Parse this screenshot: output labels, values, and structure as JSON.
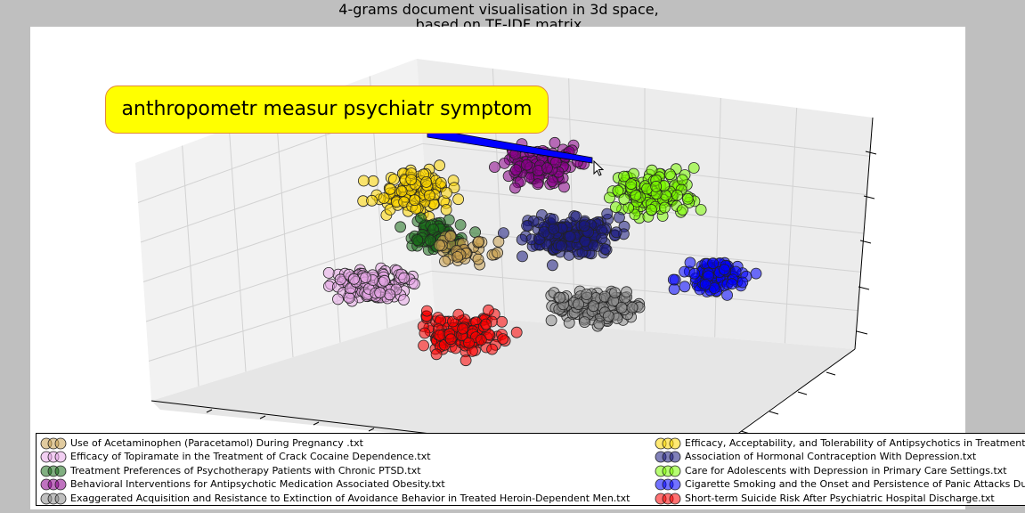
{
  "chart_data": {
    "type": "scatter",
    "projection": "3d",
    "title": "4-grams document visualisation in 3d space,\nbased on TF-IDF matrix",
    "title_lines": [
      "4-grams document visualisation in 3d space,",
      "based on TF-IDF matrix"
    ],
    "xlabel": "",
    "ylabel": "",
    "zlabel": "",
    "grid": true,
    "legend_position": "bottom",
    "annotation": "anthropometr measur psychiatr symptom",
    "series": [
      {
        "name": "Use of Acetaminophen (Paracetamol) During Pregnancy .txt",
        "color": "#c8a050"
      },
      {
        "name": "Efficacy of Topiramate in the Treatment of Crack Cocaine Dependence.txt",
        "color": "#e8a8e8"
      },
      {
        "name": "Treatment Preferences of Psychotherapy Patients with Chronic PTSD.txt",
        "color": "#1a6e1a"
      },
      {
        "name": "Behavioral Interventions for Antipsychotic Medication Associated Obesity.txt",
        "color": "#8b008b"
      },
      {
        "name": "Exaggerated Acquisition and Resistance to Extinction of Avoidance Behavior in Treated Heroin-Dependent Men.txt",
        "color": "#8c8c8c"
      },
      {
        "name": "Efficacy, Acceptability, and Tolerability of Antipsychotics in Treatment",
        "color": "#ffd700"
      },
      {
        "name": "Association of Hormonal Contraception With Depression.txt",
        "color": "#1a1a80"
      },
      {
        "name": "Care for Adolescents with Depression in Primary Care Settings.txt",
        "color": "#7cfc00"
      },
      {
        "name": "Cigarette Smoking and the Onset and Persistence of Panic Attacks Du",
        "color": "#0000ff"
      },
      {
        "name": "Short-term Suicide Risk After Psychiatric Hospital Discharge.txt",
        "color": "#ff0000"
      }
    ]
  },
  "colors": {
    "background": "#bfbfbf",
    "panel": "#ffffff",
    "annotation_fill": "#ffff00",
    "annotation_edge": "#e08a3c",
    "arrow": "#0000ff"
  }
}
